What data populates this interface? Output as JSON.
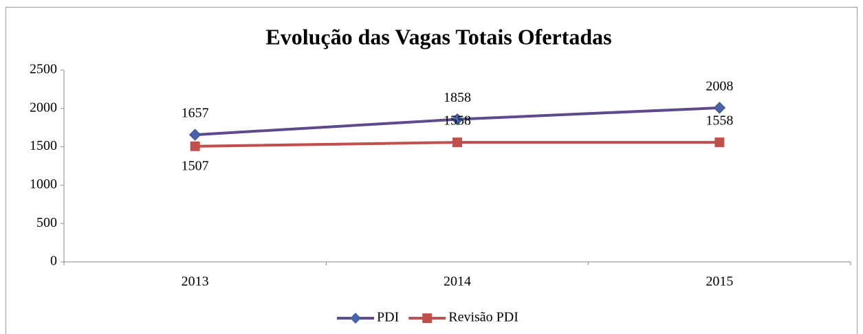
{
  "chart_data": {
    "type": "line",
    "title": "Evolução das Vagas Totais Ofertadas",
    "categories": [
      "2013",
      "2014",
      "2015"
    ],
    "series": [
      {
        "name": "PDI",
        "color": "#5e4b8b",
        "marker_color": "#4a63a8",
        "marker": "diamond",
        "values": [
          1657,
          1858,
          2008
        ]
      },
      {
        "name": "Revisão PDI",
        "color": "#c0504d",
        "marker_color": "#c0504d",
        "marker": "square",
        "values": [
          1507,
          1558,
          1558
        ]
      }
    ],
    "ylim": [
      0,
      2500
    ],
    "yticks": [
      0,
      500,
      1000,
      1500,
      2000,
      2500
    ],
    "grid": false,
    "legend": "bottom"
  }
}
